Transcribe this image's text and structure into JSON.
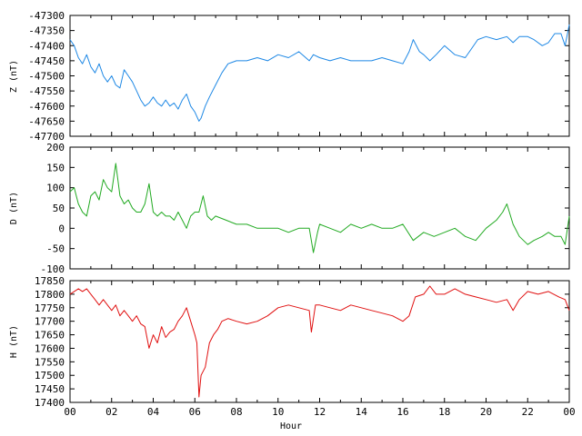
{
  "chart_data": [
    {
      "type": "line",
      "ylabel": "Z (nT)",
      "ylim": [
        -47700,
        -47300
      ],
      "yticks": [
        -47300,
        -47350,
        -47400,
        -47450,
        -47500,
        -47550,
        -47600,
        -47650,
        -47700
      ],
      "xlim": [
        0,
        24
      ],
      "color": "#1e88e5",
      "series": [
        {
          "x": [
            0.0,
            0.2,
            0.4,
            0.6,
            0.8,
            1.0,
            1.2,
            1.4,
            1.6,
            1.8,
            2.0,
            2.2,
            2.4,
            2.6,
            2.8,
            3.0,
            3.2,
            3.4,
            3.6,
            3.8,
            4.0,
            4.2,
            4.4,
            4.6,
            4.8,
            5.0,
            5.2,
            5.4,
            5.6,
            5.8,
            6.0,
            6.2,
            6.3,
            6.5,
            6.7,
            7.0,
            7.3,
            7.6,
            8.0,
            8.5,
            9.0,
            9.5,
            10.0,
            10.5,
            11.0,
            11.5,
            11.7,
            12.0,
            12.5,
            13.0,
            13.5,
            14.0,
            14.5,
            15.0,
            15.5,
            16.0,
            16.3,
            16.5,
            16.8,
            17.0,
            17.3,
            17.6,
            18.0,
            18.5,
            19.0,
            19.3,
            19.6,
            20.0,
            20.5,
            21.0,
            21.3,
            21.6,
            22.0,
            22.3,
            22.7,
            23.0,
            23.3,
            23.6,
            23.8,
            24.0
          ],
          "values": [
            -47380,
            -47400,
            -47440,
            -47460,
            -47430,
            -47470,
            -47490,
            -47460,
            -47500,
            -47520,
            -47500,
            -47530,
            -47540,
            -47480,
            -47500,
            -47520,
            -47550,
            -47580,
            -47600,
            -47590,
            -47570,
            -47590,
            -47600,
            -47580,
            -47600,
            -47590,
            -47610,
            -47580,
            -47560,
            -47600,
            -47620,
            -47650,
            -47640,
            -47600,
            -47570,
            -47530,
            -47490,
            -47460,
            -47450,
            -47450,
            -47440,
            -47450,
            -47430,
            -47440,
            -47420,
            -47450,
            -47430,
            -47440,
            -47450,
            -47440,
            -47450,
            -47450,
            -47450,
            -47440,
            -47450,
            -47460,
            -47420,
            -47380,
            -47420,
            -47430,
            -47450,
            -47430,
            -47400,
            -47430,
            -47440,
            -47410,
            -47380,
            -47370,
            -47380,
            -47370,
            -47390,
            -47370,
            -47370,
            -47380,
            -47400,
            -47390,
            -47360,
            -47360,
            -47400,
            -47330
          ]
        }
      ]
    },
    {
      "type": "line",
      "ylabel": "D (nT)",
      "ylim": [
        -100,
        200
      ],
      "yticks": [
        200,
        150,
        100,
        50,
        0,
        -50,
        -100
      ],
      "xlim": [
        0,
        24
      ],
      "color": "#22aa22",
      "series": [
        {
          "x": [
            0.0,
            0.2,
            0.4,
            0.6,
            0.8,
            1.0,
            1.2,
            1.4,
            1.6,
            1.8,
            2.0,
            2.2,
            2.4,
            2.6,
            2.8,
            3.0,
            3.2,
            3.4,
            3.6,
            3.8,
            4.0,
            4.2,
            4.4,
            4.6,
            4.8,
            5.0,
            5.2,
            5.4,
            5.6,
            5.8,
            6.0,
            6.2,
            6.4,
            6.6,
            6.8,
            7.0,
            7.5,
            8.0,
            8.5,
            9.0,
            9.5,
            10.0,
            10.5,
            11.0,
            11.5,
            11.7,
            11.9,
            12.0,
            12.5,
            13.0,
            13.5,
            14.0,
            14.5,
            15.0,
            15.5,
            16.0,
            16.5,
            17.0,
            17.5,
            18.0,
            18.5,
            19.0,
            19.5,
            20.0,
            20.5,
            20.8,
            21.0,
            21.3,
            21.6,
            22.0,
            22.3,
            22.7,
            23.0,
            23.3,
            23.6,
            23.8,
            24.0
          ],
          "values": [
            90,
            100,
            60,
            40,
            30,
            80,
            90,
            70,
            120,
            100,
            90,
            160,
            80,
            60,
            70,
            50,
            40,
            40,
            60,
            110,
            40,
            30,
            40,
            30,
            30,
            20,
            40,
            20,
            0,
            30,
            40,
            40,
            80,
            30,
            20,
            30,
            20,
            10,
            10,
            0,
            0,
            0,
            -10,
            0,
            0,
            -60,
            -10,
            10,
            0,
            -10,
            10,
            0,
            10,
            0,
            0,
            10,
            -30,
            -10,
            -20,
            -10,
            0,
            -20,
            -30,
            0,
            20,
            40,
            60,
            10,
            -20,
            -40,
            -30,
            -20,
            -10,
            -20,
            -20,
            -40,
            30
          ]
        }
      ]
    },
    {
      "type": "line",
      "ylabel": "H (nT)",
      "xlabel": "Hour",
      "ylim": [
        17400,
        17850
      ],
      "yticks": [
        17850,
        17800,
        17750,
        17700,
        17650,
        17600,
        17550,
        17500,
        17450,
        17400
      ],
      "xlim": [
        0,
        24
      ],
      "xticks": [
        "00",
        "02",
        "04",
        "06",
        "08",
        "10",
        "12",
        "14",
        "16",
        "18",
        "20",
        "22",
        "00"
      ],
      "color": "#e01010",
      "series": [
        {
          "x": [
            0.0,
            0.2,
            0.4,
            0.6,
            0.8,
            1.0,
            1.2,
            1.4,
            1.6,
            1.8,
            2.0,
            2.2,
            2.4,
            2.6,
            2.8,
            3.0,
            3.2,
            3.4,
            3.6,
            3.8,
            4.0,
            4.2,
            4.4,
            4.6,
            4.8,
            5.0,
            5.2,
            5.4,
            5.6,
            5.8,
            6.0,
            6.1,
            6.2,
            6.3,
            6.5,
            6.7,
            6.9,
            7.1,
            7.3,
            7.6,
            8.0,
            8.5,
            9.0,
            9.5,
            10.0,
            10.5,
            11.0,
            11.5,
            11.6,
            11.8,
            12.0,
            12.5,
            13.0,
            13.5,
            14.0,
            14.5,
            15.0,
            15.5,
            16.0,
            16.3,
            16.6,
            17.0,
            17.3,
            17.6,
            18.0,
            18.5,
            19.0,
            19.5,
            20.0,
            20.5,
            21.0,
            21.3,
            21.6,
            22.0,
            22.5,
            23.0,
            23.5,
            23.8,
            24.0
          ],
          "values": [
            17800,
            17810,
            17820,
            17810,
            17820,
            17800,
            17780,
            17760,
            17780,
            17760,
            17740,
            17760,
            17720,
            17740,
            17720,
            17700,
            17720,
            17690,
            17680,
            17600,
            17650,
            17620,
            17680,
            17640,
            17660,
            17670,
            17700,
            17720,
            17750,
            17700,
            17650,
            17620,
            17420,
            17500,
            17530,
            17620,
            17650,
            17670,
            17700,
            17710,
            17700,
            17690,
            17700,
            17720,
            17750,
            17760,
            17750,
            17740,
            17660,
            17760,
            17760,
            17750,
            17740,
            17760,
            17750,
            17740,
            17730,
            17720,
            17700,
            17720,
            17790,
            17800,
            17830,
            17800,
            17800,
            17820,
            17800,
            17790,
            17780,
            17770,
            17780,
            17740,
            17780,
            17810,
            17800,
            17810,
            17790,
            17780,
            17740
          ]
        }
      ]
    }
  ]
}
